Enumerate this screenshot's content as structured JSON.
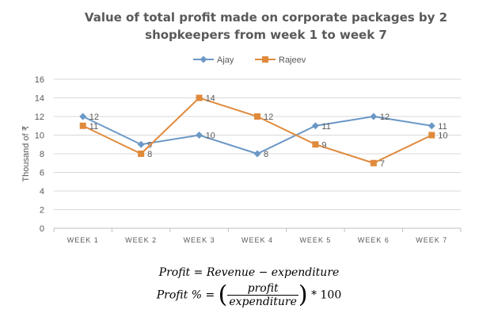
{
  "chart_data": {
    "type": "line",
    "title_line1": "Value of total profit made on corporate packages by 2",
    "title_line2": "shopkeepers from week 1 to week 7",
    "ylabel": "Thousand of ₹",
    "xlabel": "",
    "categories": [
      "WEEK 1",
      "WEEK 2",
      "WEEK 3",
      "WEEK 4",
      "WEEK 5",
      "WEEK 6",
      "WEEK 7"
    ],
    "ylim": [
      0,
      16
    ],
    "yticks": [
      0,
      2,
      4,
      6,
      8,
      10,
      12,
      14,
      16
    ],
    "grid": true,
    "legend": "top-center",
    "series": [
      {
        "name": "Ajay",
        "values": [
          12,
          9,
          10,
          8,
          11,
          12,
          11
        ],
        "color": "#6b98c6",
        "marker": "diamond"
      },
      {
        "name": "Rajeev",
        "values": [
          11,
          8,
          14,
          12,
          9,
          7,
          10
        ],
        "color": "#e08a3c",
        "marker": "square"
      }
    ]
  },
  "formulas": {
    "line1": {
      "lhs": "Profit",
      "eq": "=",
      "rhs": "Revenue − expenditure"
    },
    "line2": {
      "lhs": "Profit %",
      "eq": "=",
      "numerator": "profit",
      "denominator": "expenditure",
      "open_paren": "(",
      "close_paren": ")",
      "suffix": "* 100"
    }
  }
}
